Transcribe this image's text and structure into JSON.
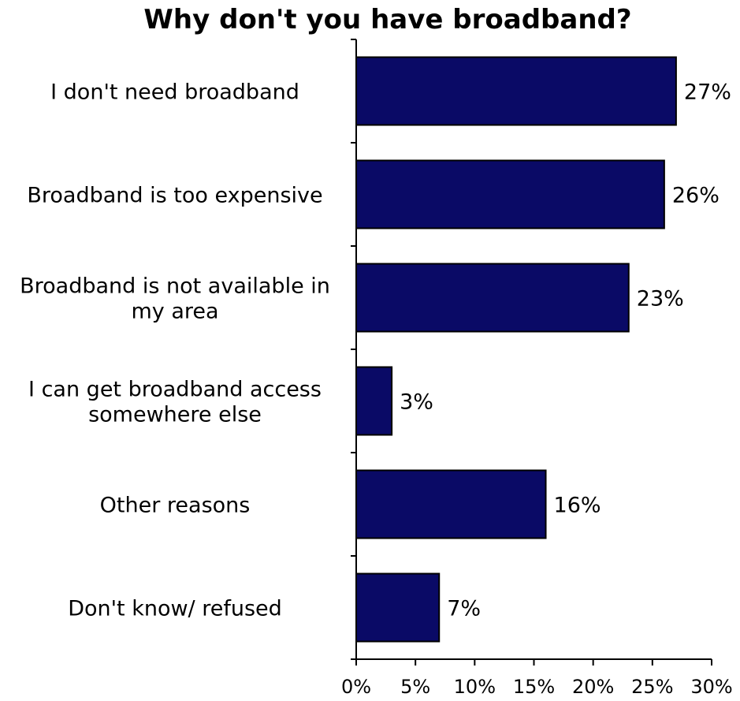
{
  "chart_data": {
    "type": "bar",
    "orientation": "horizontal",
    "title": "Why don't you have broadband?",
    "categories": [
      [
        "I don't need broadband"
      ],
      [
        "Broadband is too expensive"
      ],
      [
        "Broadband is not available in",
        "my area"
      ],
      [
        "I can get broadband access",
        "somewhere else"
      ],
      [
        "Other reasons"
      ],
      [
        "Don't know/ refused"
      ]
    ],
    "values": [
      27,
      26,
      23,
      3,
      16,
      7
    ],
    "value_labels": [
      "27%",
      "26%",
      "23%",
      "3%",
      "16%",
      "7%"
    ],
    "xlim": [
      0,
      30
    ],
    "xticks": [
      0,
      5,
      10,
      15,
      20,
      25,
      30
    ],
    "xtick_labels": [
      "0%",
      "5%",
      "10%",
      "15%",
      "20%",
      "25%",
      "30%"
    ],
    "bar_color": "#0a0a66",
    "grid": false,
    "legend": "none"
  }
}
